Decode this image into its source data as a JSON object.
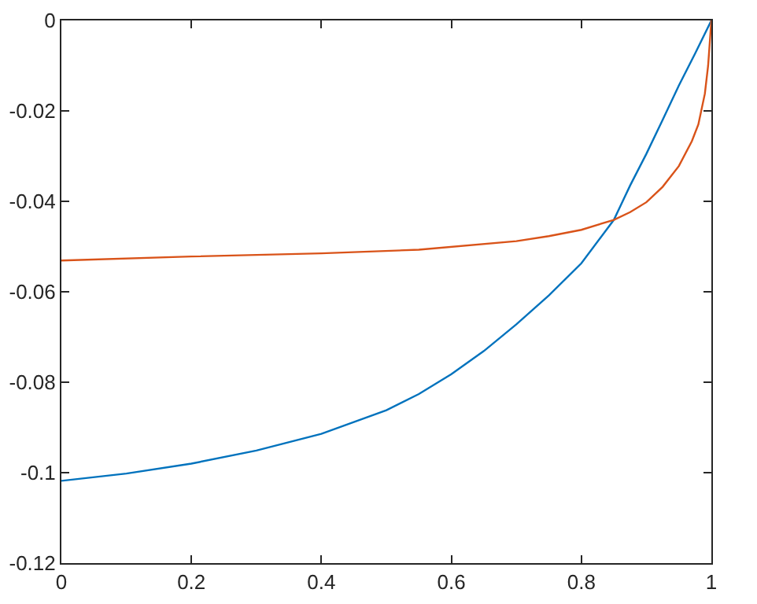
{
  "chart_data": {
    "type": "line",
    "xlim": [
      0,
      1
    ],
    "ylim": [
      -0.12,
      0
    ],
    "xticks": [
      0,
      0.2,
      0.4,
      0.6,
      0.8,
      1
    ],
    "yticks": [
      -0.12,
      -0.1,
      -0.08,
      -0.06,
      -0.04,
      -0.02,
      0
    ],
    "marker": "none",
    "line_style": "solid",
    "series": [
      {
        "color": "#0072bd",
        "x": [
          0,
          0.1,
          0.2,
          0.3,
          0.4,
          0.5,
          0.55,
          0.6,
          0.65,
          0.7,
          0.75,
          0.8,
          0.85,
          0.875,
          0.9,
          0.925,
          0.95,
          0.975,
          1
        ],
        "values": [
          -0.1018,
          -0.1002,
          -0.098,
          -0.0951,
          -0.0914,
          -0.0862,
          -0.0826,
          -0.0782,
          -0.0731,
          -0.0672,
          -0.0608,
          -0.0537,
          -0.0441,
          -0.0365,
          -0.0295,
          -0.022,
          -0.0144,
          -0.0073,
          0
        ]
      },
      {
        "color": "#d95319",
        "x": [
          0,
          0.2,
          0.4,
          0.55,
          0.7,
          0.75,
          0.8,
          0.85,
          0.875,
          0.9,
          0.925,
          0.95,
          0.97,
          0.98,
          0.99,
          0.995,
          1
        ],
        "values": [
          -0.0531,
          -0.0522,
          -0.0515,
          -0.0507,
          -0.0488,
          -0.0477,
          -0.0463,
          -0.0441,
          -0.0424,
          -0.0402,
          -0.0368,
          -0.0322,
          -0.0267,
          -0.023,
          -0.0162,
          -0.01,
          0
        ]
      }
    ]
  }
}
